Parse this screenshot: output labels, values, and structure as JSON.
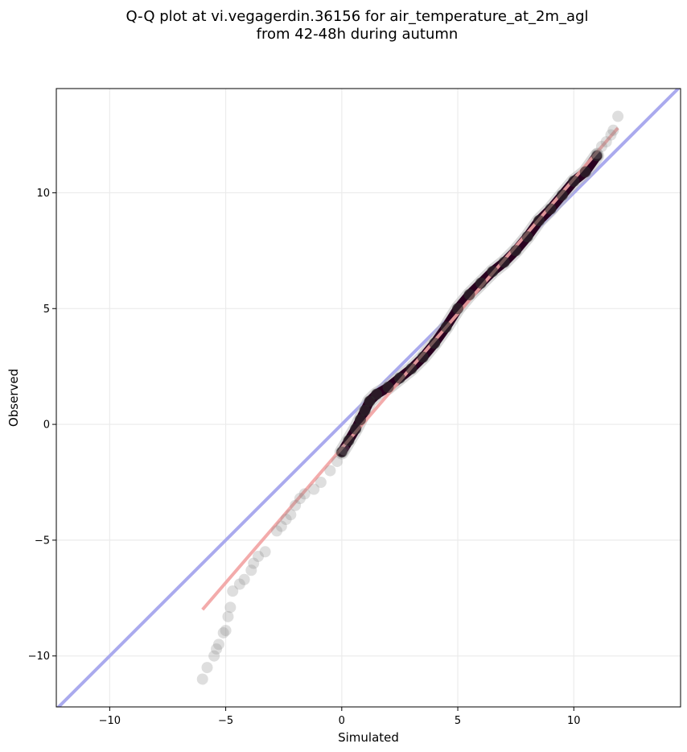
{
  "chart_data": {
    "type": "scatter",
    "title": [
      "Q-Q plot at vi.vegagerdin.36156 for air_temperature_at_2m_agl",
      "from 42-48h during autumn"
    ],
    "xlabel": "Simulated",
    "ylabel": "Observed",
    "xlim": [
      -12.3,
      14.6
    ],
    "ylim": [
      -12.2,
      14.5
    ],
    "xticks": [
      -10,
      -5,
      0,
      5,
      10
    ],
    "yticks": [
      -10,
      -5,
      0,
      5,
      10
    ],
    "tick_labels_x": [
      "−10",
      "−5",
      "0",
      "5",
      "10"
    ],
    "tick_labels_y": [
      "−10",
      "−5",
      "0",
      "5",
      "10"
    ],
    "grid": true,
    "identity_line": {
      "color": "#aaaaee"
    },
    "fit_line": {
      "from": [
        -6.0,
        -8.0
      ],
      "to": [
        11.9,
        12.8
      ],
      "color": "#f2a3a3"
    },
    "trace_color": "#2a0020",
    "sparse_points": [
      [
        -6.0,
        -11.0
      ],
      [
        -5.8,
        -10.5
      ],
      [
        -5.5,
        -10.0
      ],
      [
        -5.4,
        -9.7
      ],
      [
        -5.3,
        -9.5
      ],
      [
        -5.1,
        -9.0
      ],
      [
        -5.0,
        -8.9
      ],
      [
        -4.9,
        -8.3
      ],
      [
        -4.8,
        -7.9
      ],
      [
        -4.7,
        -7.2
      ],
      [
        -4.4,
        -6.9
      ],
      [
        -4.2,
        -6.7
      ],
      [
        -3.9,
        -6.3
      ],
      [
        -3.8,
        -6.0
      ],
      [
        -3.6,
        -5.7
      ],
      [
        -3.3,
        -5.5
      ],
      [
        -2.8,
        -4.6
      ],
      [
        -2.6,
        -4.4
      ],
      [
        -2.4,
        -4.1
      ],
      [
        -2.2,
        -3.9
      ],
      [
        -2.0,
        -3.5
      ],
      [
        -1.8,
        -3.2
      ],
      [
        -1.6,
        -3.0
      ],
      [
        -1.2,
        -2.8
      ],
      [
        -0.9,
        -2.5
      ],
      [
        -0.5,
        -2.0
      ],
      [
        -0.2,
        -1.6
      ],
      [
        0.1,
        -1.1
      ],
      [
        11.6,
        12.5
      ],
      [
        11.7,
        12.7
      ],
      [
        11.9,
        13.3
      ],
      [
        11.4,
        12.2
      ],
      [
        11.2,
        12.0
      ],
      [
        11.0,
        11.7
      ]
    ],
    "dense_points": [
      [
        0.0,
        -1.2
      ],
      [
        0.3,
        -0.7
      ],
      [
        0.6,
        -0.2
      ],
      [
        0.8,
        0.2
      ],
      [
        1.0,
        0.6
      ],
      [
        1.2,
        1.0
      ],
      [
        1.5,
        1.3
      ],
      [
        2.0,
        1.6
      ],
      [
        2.5,
        2.0
      ],
      [
        3.0,
        2.4
      ],
      [
        3.5,
        2.9
      ],
      [
        4.0,
        3.5
      ],
      [
        4.5,
        4.2
      ],
      [
        5.0,
        5.0
      ],
      [
        5.5,
        5.6
      ],
      [
        6.0,
        6.1
      ],
      [
        6.5,
        6.6
      ],
      [
        7.0,
        7.0
      ],
      [
        7.5,
        7.5
      ],
      [
        8.0,
        8.1
      ],
      [
        8.5,
        8.8
      ],
      [
        9.0,
        9.3
      ],
      [
        9.5,
        9.9
      ],
      [
        10.0,
        10.5
      ],
      [
        10.5,
        10.9
      ],
      [
        11.0,
        11.6
      ]
    ]
  }
}
